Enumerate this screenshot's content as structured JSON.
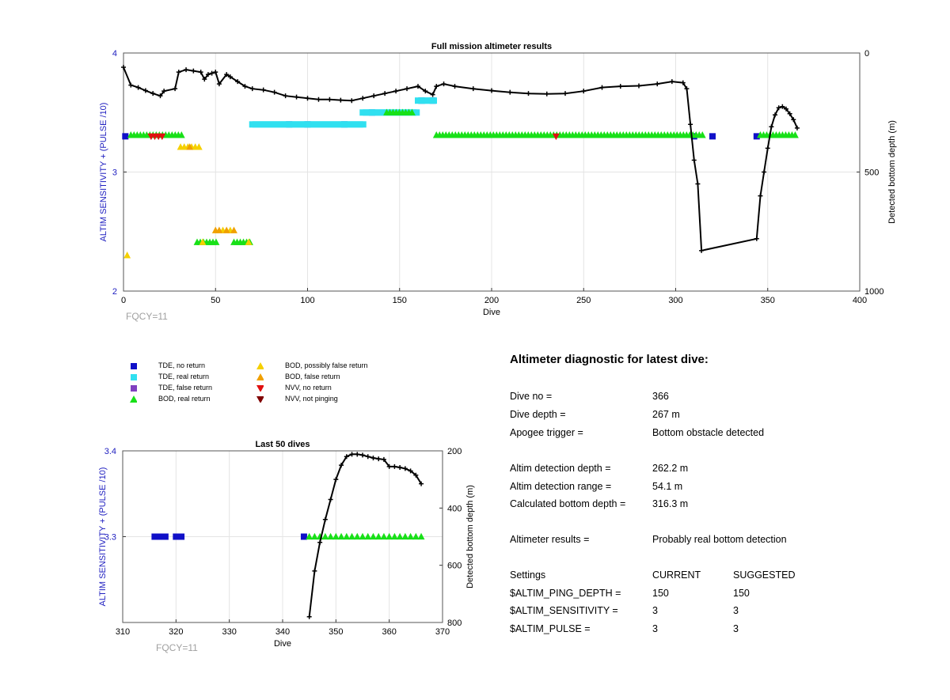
{
  "chart_data": [
    {
      "type": "scatter",
      "title": "Full mission altimeter results",
      "xlabel": "Dive",
      "ylabel": "ALTIM SENSITIVITY + (PULSE /10)",
      "y2label": "Detected bottom depth (m)",
      "xlim": [
        0,
        400
      ],
      "ylim": [
        2,
        4
      ],
      "y2lim": [
        0,
        1000
      ],
      "y2_reversed": true,
      "x_ticks": [
        "0",
        "50",
        "100",
        "150",
        "200",
        "250",
        "300",
        "350",
        "400"
      ],
      "y_ticks": [
        "2",
        "3",
        "4"
      ],
      "y2_ticks": [
        "0",
        "500",
        "1000"
      ],
      "grid": true,
      "annotation": "FQCY=11",
      "series": [
        {
          "name": "TDE, no return",
          "color": "#1010c8",
          "marker": "square",
          "points": [
            [
              1,
              3.3
            ],
            [
              90,
              3.4
            ],
            [
              100,
              3.4
            ],
            [
              120,
              3.4
            ],
            [
              135,
              3.5
            ],
            [
              162,
              3.6
            ],
            [
              168,
              3.6
            ],
            [
              310,
              3.3
            ],
            [
              320,
              3.3
            ],
            [
              344,
              3.3
            ]
          ]
        },
        {
          "name": "TDE, real return",
          "color": "#30e0f0",
          "marker": "square",
          "segments": [
            [
              [
                70,
                3.4
              ],
              [
                131,
                3.4
              ]
            ],
            [
              [
                130,
                3.5
              ],
              [
                160,
                3.5
              ]
            ],
            [
              [
                160,
                3.6
              ],
              [
                170,
                3.6
              ]
            ]
          ]
        },
        {
          "name": "BOD, real return",
          "color": "#18e018",
          "marker": "triangle-up",
          "segments": [
            [
              [
                4,
                3.31
              ],
              [
                32,
                3.31
              ]
            ],
            [
              [
                143,
                3.5
              ],
              [
                157,
                3.5
              ]
            ],
            [
              [
                170,
                3.31
              ],
              [
                315,
                3.31
              ]
            ],
            [
              [
                346,
                3.31
              ],
              [
                366,
                3.31
              ]
            ],
            [
              [
                40,
                2.41
              ],
              [
                51,
                2.41
              ]
            ],
            [
              [
                60,
                2.41
              ],
              [
                69,
                2.41
              ]
            ]
          ]
        },
        {
          "name": "BOD, possibly false return",
          "color": "#f5d000",
          "marker": "triangle-up",
          "points": [
            [
              2,
              2.3
            ],
            [
              31,
              3.21
            ],
            [
              33,
              3.21
            ],
            [
              35,
              3.21
            ],
            [
              37,
              3.21
            ],
            [
              39,
              3.21
            ],
            [
              41,
              3.21
            ],
            [
              54,
              2.51
            ],
            [
              58,
              2.51
            ],
            [
              43,
              2.41
            ],
            [
              68,
              2.41
            ]
          ]
        },
        {
          "name": "BOD, false return",
          "color": "#f0a000",
          "marker": "triangle-up",
          "points": [
            [
              50,
              2.51
            ],
            [
              52,
              2.51
            ],
            [
              56,
              2.51
            ],
            [
              60,
              2.51
            ],
            [
              36,
              3.21
            ]
          ]
        },
        {
          "name": "NVV, no return",
          "color": "#e01010",
          "marker": "triangle-down",
          "points": [
            [
              15,
              3.3
            ],
            [
              17,
              3.3
            ],
            [
              19,
              3.3
            ],
            [
              21,
              3.3
            ],
            [
              235,
              3.3
            ]
          ]
        },
        {
          "name": "TDE, false return",
          "color": "#8040c0",
          "marker": "square",
          "points": []
        },
        {
          "name": "NVV, not pinging",
          "color": "#800000",
          "marker": "triangle-down",
          "points": []
        },
        {
          "name": "Detected bottom depth",
          "axis": "y2",
          "color": "#000000",
          "marker": "plus",
          "points": [
            [
              0,
              60
            ],
            [
              4,
              135
            ],
            [
              8,
              145
            ],
            [
              12,
              158
            ],
            [
              16,
              170
            ],
            [
              20,
              180
            ],
            [
              22,
              160
            ],
            [
              28,
              150
            ],
            [
              30,
              80
            ],
            [
              34,
              70
            ],
            [
              38,
              75
            ],
            [
              42,
              80
            ],
            [
              44,
              110
            ],
            [
              46,
              90
            ],
            [
              48,
              85
            ],
            [
              50,
              80
            ],
            [
              52,
              130
            ],
            [
              56,
              90
            ],
            [
              58,
              100
            ],
            [
              62,
              120
            ],
            [
              66,
              140
            ],
            [
              70,
              150
            ],
            [
              76,
              155
            ],
            [
              82,
              165
            ],
            [
              88,
              180
            ],
            [
              94,
              185
            ],
            [
              100,
              190
            ],
            [
              106,
              195
            ],
            [
              112,
              195
            ],
            [
              118,
              198
            ],
            [
              124,
              200
            ],
            [
              130,
              190
            ],
            [
              136,
              180
            ],
            [
              142,
              170
            ],
            [
              148,
              160
            ],
            [
              154,
              150
            ],
            [
              160,
              140
            ],
            [
              164,
              160
            ],
            [
              168,
              175
            ],
            [
              170,
              140
            ],
            [
              174,
              130
            ],
            [
              180,
              140
            ],
            [
              190,
              150
            ],
            [
              200,
              158
            ],
            [
              210,
              165
            ],
            [
              220,
              170
            ],
            [
              230,
              172
            ],
            [
              240,
              170
            ],
            [
              250,
              160
            ],
            [
              260,
              145
            ],
            [
              270,
              140
            ],
            [
              280,
              138
            ],
            [
              290,
              130
            ],
            [
              298,
              120
            ],
            [
              304,
              125
            ],
            [
              306,
              150
            ],
            [
              308,
              300
            ],
            [
              310,
              450
            ],
            [
              312,
              550
            ],
            [
              314,
              830
            ],
            [
              344,
              780
            ],
            [
              346,
              600
            ],
            [
              348,
              500
            ],
            [
              350,
              400
            ],
            [
              352,
              310
            ],
            [
              354,
              260
            ],
            [
              356,
              230
            ],
            [
              358,
              225
            ],
            [
              360,
              235
            ],
            [
              362,
              255
            ],
            [
              364,
              280
            ],
            [
              366,
              315
            ]
          ]
        }
      ]
    },
    {
      "type": "scatter",
      "title": "Last 50 dives",
      "xlabel": "Dive",
      "ylabel": "ALTIM SENSITIVITY + (PULSE /10)",
      "y2label": "Detected bottom depth (m)",
      "xlim": [
        310,
        370
      ],
      "ylim": [
        3.2,
        3.4
      ],
      "y2lim": [
        200,
        800
      ],
      "y2_reversed": true,
      "x_ticks": [
        "310",
        "320",
        "330",
        "340",
        "350",
        "360",
        "370"
      ],
      "y_ticks": [
        "3.3",
        "3.4"
      ],
      "y2_ticks": [
        "200",
        "400",
        "600",
        "800"
      ],
      "grid": true,
      "annotation": "FQCY=11",
      "series": [
        {
          "name": "TDE, no return",
          "color": "#1010c8",
          "marker": "square",
          "points": [
            [
              316,
              3.3
            ],
            [
              317,
              3.3
            ],
            [
              318,
              3.3
            ],
            [
              320,
              3.3
            ],
            [
              321,
              3.3
            ],
            [
              344,
              3.3
            ]
          ]
        },
        {
          "name": "BOD, real return",
          "color": "#18e018",
          "marker": "triangle-up",
          "points": [
            [
              345,
              3.3
            ],
            [
              346,
              3.3
            ],
            [
              347,
              3.3
            ],
            [
              348,
              3.3
            ],
            [
              349,
              3.3
            ],
            [
              350,
              3.3
            ],
            [
              351,
              3.3
            ],
            [
              352,
              3.3
            ],
            [
              353,
              3.3
            ],
            [
              354,
              3.3
            ],
            [
              355,
              3.3
            ],
            [
              356,
              3.3
            ],
            [
              357,
              3.3
            ],
            [
              358,
              3.3
            ],
            [
              359,
              3.3
            ],
            [
              360,
              3.3
            ],
            [
              361,
              3.3
            ],
            [
              362,
              3.3
            ],
            [
              363,
              3.3
            ],
            [
              364,
              3.3
            ],
            [
              365,
              3.3
            ],
            [
              366,
              3.3
            ]
          ]
        },
        {
          "name": "Detected bottom depth",
          "axis": "y2",
          "color": "#000000",
          "marker": "plus",
          "points": [
            [
              345,
              780
            ],
            [
              346,
              620
            ],
            [
              347,
              520
            ],
            [
              348,
              440
            ],
            [
              349,
              370
            ],
            [
              350,
              300
            ],
            [
              351,
              250
            ],
            [
              352,
              220
            ],
            [
              353,
              212
            ],
            [
              354,
              212
            ],
            [
              355,
              215
            ],
            [
              356,
              220
            ],
            [
              357,
              225
            ],
            [
              358,
              228
            ],
            [
              359,
              230
            ],
            [
              360,
              255
            ],
            [
              361,
              255
            ],
            [
              362,
              258
            ],
            [
              363,
              262
            ],
            [
              364,
              270
            ],
            [
              365,
              285
            ],
            [
              366,
              315
            ]
          ]
        }
      ]
    }
  ],
  "legend": {
    "items": [
      {
        "label": "TDE, no return",
        "color": "#1010c8",
        "shape": "square"
      },
      {
        "label": "TDE, real return",
        "color": "#30e0f0",
        "shape": "square"
      },
      {
        "label": "TDE, false return",
        "color": "#8040c0",
        "shape": "square"
      },
      {
        "label": "BOD, real return",
        "color": "#18e018",
        "shape": "triangle-up"
      },
      {
        "label": "BOD, possibly false return",
        "color": "#f5d000",
        "shape": "triangle-up"
      },
      {
        "label": "BOD, false return",
        "color": "#f0a000",
        "shape": "triangle-up"
      },
      {
        "label": "NVV, no return",
        "color": "#e01010",
        "shape": "triangle-down"
      },
      {
        "label": "NVV, not pinging",
        "color": "#800000",
        "shape": "triangle-down"
      }
    ]
  },
  "diagnostic": {
    "title": "Altimeter diagnostic for latest dive:",
    "rows": [
      {
        "label": "Dive no =",
        "value": "366"
      },
      {
        "label": "Dive depth =",
        "value": "267 m"
      },
      {
        "label": "Apogee trigger =",
        "value": "Bottom obstacle detected"
      },
      {
        "label": "Altim detection depth =",
        "value": "262.2 m"
      },
      {
        "label": "Altim detection range =",
        "value": "54.1 m"
      },
      {
        "label": "Calculated bottom depth =",
        "value": "316.3 m"
      },
      {
        "label": "Altimeter results =",
        "value": "Probably real bottom detection"
      }
    ],
    "settings_header": {
      "label": "Settings",
      "current": "CURRENT",
      "suggested": "SUGGESTED"
    },
    "settings": [
      {
        "label": "$ALTIM_PING_DEPTH =",
        "current": "150",
        "suggested": "150"
      },
      {
        "label": "$ALTIM_SENSITIVITY =",
        "current": "3",
        "suggested": "3"
      },
      {
        "label": "$ALTIM_PULSE =",
        "current": "3",
        "suggested": "3"
      }
    ]
  }
}
